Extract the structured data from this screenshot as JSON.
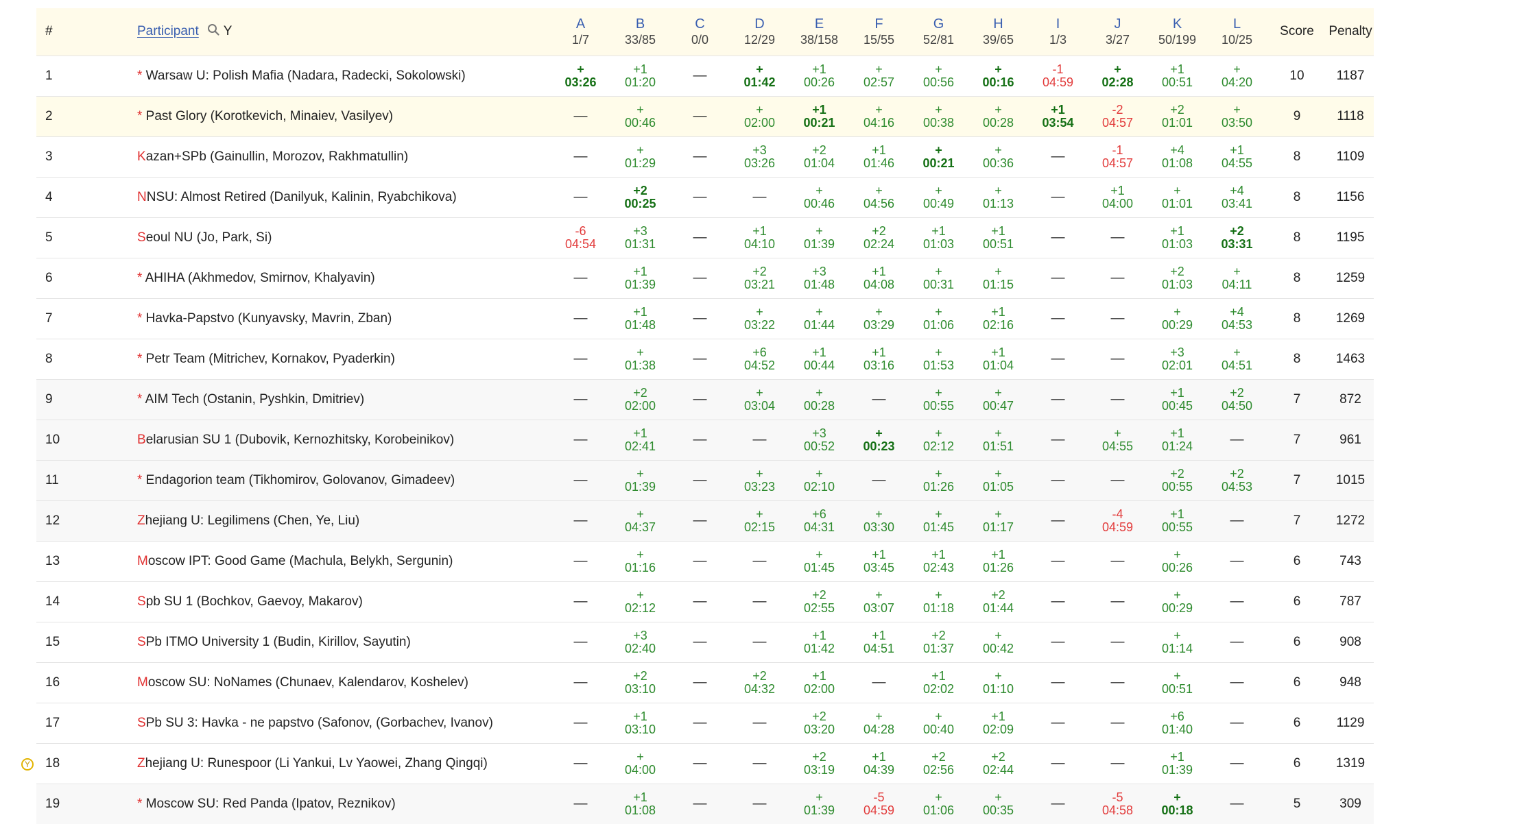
{
  "header": {
    "rank_label": "#",
    "participant_label": "Participant",
    "filter_label": "Y",
    "score_label": "Score",
    "penalty_label": "Penalty",
    "problems": [
      {
        "letter": "A",
        "stat": "1/7"
      },
      {
        "letter": "B",
        "stat": "33/85"
      },
      {
        "letter": "C",
        "stat": "0/0"
      },
      {
        "letter": "D",
        "stat": "12/29"
      },
      {
        "letter": "E",
        "stat": "38/158"
      },
      {
        "letter": "F",
        "stat": "15/55"
      },
      {
        "letter": "G",
        "stat": "52/81"
      },
      {
        "letter": "H",
        "stat": "39/65"
      },
      {
        "letter": "I",
        "stat": "1/3"
      },
      {
        "letter": "J",
        "stat": "3/27"
      },
      {
        "letter": "K",
        "stat": "50/199"
      },
      {
        "letter": "L",
        "stat": "10/25"
      }
    ]
  },
  "favorite_marker": "Y",
  "rows": [
    {
      "rank": "1",
      "mark": "*",
      "team": " Warsaw U: Polish Mafia (Nadara, Radecki, Sokolowski)",
      "score": "10",
      "penalty": "1187",
      "cells": [
        [
          "f",
          "+",
          "03:26"
        ],
        [
          "s",
          "+1",
          "01:20"
        ],
        [
          "n"
        ],
        [
          "f",
          "+",
          "01:42"
        ],
        [
          "s",
          "+1",
          "00:26"
        ],
        [
          "s",
          "+",
          "02:57"
        ],
        [
          "s",
          "+",
          "00:56"
        ],
        [
          "f",
          "+",
          "00:16"
        ],
        [
          "r",
          "-1",
          "04:59"
        ],
        [
          "f",
          "+",
          "02:28"
        ],
        [
          "s",
          "+1",
          "00:51"
        ],
        [
          "s",
          "+",
          "04:20"
        ]
      ]
    },
    {
      "rank": "2",
      "mark": "*",
      "team": " Past Glory (Korotkevich, Minaiev, Vasilyev)",
      "score": "9",
      "penalty": "1118",
      "cells": [
        [
          "n"
        ],
        [
          "s",
          "+",
          "00:46"
        ],
        [
          "n"
        ],
        [
          "s",
          "+",
          "02:00"
        ],
        [
          "f",
          "+1",
          "00:21"
        ],
        [
          "s",
          "+",
          "04:16"
        ],
        [
          "s",
          "+",
          "00:38"
        ],
        [
          "s",
          "+",
          "00:28"
        ],
        [
          "f",
          "+1",
          "03:54"
        ],
        [
          "r",
          "-2",
          "04:57"
        ],
        [
          "s",
          "+2",
          "01:01"
        ],
        [
          "s",
          "+",
          "03:50"
        ]
      ]
    },
    {
      "rank": "3",
      "mark": "K",
      "team": "azan+SPb (Gainullin, Morozov, Rakhmatullin)",
      "score": "8",
      "penalty": "1109",
      "cells": [
        [
          "n"
        ],
        [
          "s",
          "+",
          "01:29"
        ],
        [
          "n"
        ],
        [
          "s",
          "+3",
          "03:26"
        ],
        [
          "s",
          "+2",
          "01:04"
        ],
        [
          "s",
          "+1",
          "01:46"
        ],
        [
          "f",
          "+",
          "00:21"
        ],
        [
          "s",
          "+",
          "00:36"
        ],
        [
          "n"
        ],
        [
          "r",
          "-1",
          "04:57"
        ],
        [
          "s",
          "+4",
          "01:08"
        ],
        [
          "s",
          "+1",
          "04:55"
        ]
      ]
    },
    {
      "rank": "4",
      "mark": "N",
      "team": "NSU: Almost Retired (Danilyuk, Kalinin, Ryabchikova)",
      "score": "8",
      "penalty": "1156",
      "cells": [
        [
          "n"
        ],
        [
          "f",
          "+2",
          "00:25"
        ],
        [
          "n"
        ],
        [
          "n"
        ],
        [
          "s",
          "+",
          "00:46"
        ],
        [
          "s",
          "+",
          "04:56"
        ],
        [
          "s",
          "+",
          "00:49"
        ],
        [
          "s",
          "+",
          "01:13"
        ],
        [
          "n"
        ],
        [
          "s",
          "+1",
          "04:00"
        ],
        [
          "s",
          "+",
          "01:01"
        ],
        [
          "s",
          "+4",
          "03:41"
        ]
      ]
    },
    {
      "rank": "5",
      "mark": "S",
      "team": "eoul NU (Jo, Park, Si)",
      "score": "8",
      "penalty": "1195",
      "cells": [
        [
          "r",
          "-6",
          "04:54"
        ],
        [
          "s",
          "+3",
          "01:31"
        ],
        [
          "n"
        ],
        [
          "s",
          "+1",
          "04:10"
        ],
        [
          "s",
          "+",
          "01:39"
        ],
        [
          "s",
          "+2",
          "02:24"
        ],
        [
          "s",
          "+1",
          "01:03"
        ],
        [
          "s",
          "+1",
          "00:51"
        ],
        [
          "n"
        ],
        [
          "n"
        ],
        [
          "s",
          "+1",
          "01:03"
        ],
        [
          "f",
          "+2",
          "03:31"
        ]
      ]
    },
    {
      "rank": "6",
      "mark": "*",
      "team": " AHIHA (Akhmedov, Smirnov, Khalyavin)",
      "score": "8",
      "penalty": "1259",
      "cells": [
        [
          "n"
        ],
        [
          "s",
          "+1",
          "01:39"
        ],
        [
          "n"
        ],
        [
          "s",
          "+2",
          "03:21"
        ],
        [
          "s",
          "+3",
          "01:48"
        ],
        [
          "s",
          "+1",
          "04:08"
        ],
        [
          "s",
          "+",
          "00:31"
        ],
        [
          "s",
          "+",
          "01:15"
        ],
        [
          "n"
        ],
        [
          "n"
        ],
        [
          "s",
          "+2",
          "01:03"
        ],
        [
          "s",
          "+",
          "04:11"
        ]
      ]
    },
    {
      "rank": "7",
      "mark": "*",
      "team": " Havka-Papstvo (Kunyavsky, Mavrin, Zban)",
      "score": "8",
      "penalty": "1269",
      "cells": [
        [
          "n"
        ],
        [
          "s",
          "+1",
          "01:48"
        ],
        [
          "n"
        ],
        [
          "s",
          "+",
          "03:22"
        ],
        [
          "s",
          "+",
          "01:44"
        ],
        [
          "s",
          "+",
          "03:29"
        ],
        [
          "s",
          "+",
          "01:06"
        ],
        [
          "s",
          "+1",
          "02:16"
        ],
        [
          "n"
        ],
        [
          "n"
        ],
        [
          "s",
          "+",
          "00:29"
        ],
        [
          "s",
          "+4",
          "04:53"
        ]
      ]
    },
    {
      "rank": "8",
      "mark": "*",
      "team": " Petr Team (Mitrichev, Kornakov, Pyaderkin)",
      "score": "8",
      "penalty": "1463",
      "cells": [
        [
          "n"
        ],
        [
          "s",
          "+",
          "01:38"
        ],
        [
          "n"
        ],
        [
          "s",
          "+6",
          "04:52"
        ],
        [
          "s",
          "+1",
          "00:44"
        ],
        [
          "s",
          "+1",
          "03:16"
        ],
        [
          "s",
          "+",
          "01:53"
        ],
        [
          "s",
          "+1",
          "01:04"
        ],
        [
          "n"
        ],
        [
          "n"
        ],
        [
          "s",
          "+3",
          "02:01"
        ],
        [
          "s",
          "+",
          "04:51"
        ]
      ]
    },
    {
      "rank": "9",
      "mark": "*",
      "team": " AIM Tech (Ostanin, Pyshkin, Dmitriev)",
      "score": "7",
      "penalty": "872",
      "cells": [
        [
          "n"
        ],
        [
          "s",
          "+2",
          "02:00"
        ],
        [
          "n"
        ],
        [
          "s",
          "+",
          "03:04"
        ],
        [
          "s",
          "+",
          "00:28"
        ],
        [
          "n"
        ],
        [
          "s",
          "+",
          "00:55"
        ],
        [
          "s",
          "+",
          "00:47"
        ],
        [
          "n"
        ],
        [
          "n"
        ],
        [
          "s",
          "+1",
          "00:45"
        ],
        [
          "s",
          "+2",
          "04:50"
        ]
      ]
    },
    {
      "rank": "10",
      "mark": "B",
      "team": "elarusian SU 1 (Dubovik, Kernozhitsky, Korobeinikov)",
      "score": "7",
      "penalty": "961",
      "cells": [
        [
          "n"
        ],
        [
          "s",
          "+1",
          "02:41"
        ],
        [
          "n"
        ],
        [
          "n"
        ],
        [
          "s",
          "+3",
          "00:52"
        ],
        [
          "f",
          "+",
          "00:23"
        ],
        [
          "s",
          "+",
          "02:12"
        ],
        [
          "s",
          "+",
          "01:51"
        ],
        [
          "n"
        ],
        [
          "s",
          "+",
          "04:55"
        ],
        [
          "s",
          "+1",
          "01:24"
        ],
        [
          "n"
        ]
      ]
    },
    {
      "rank": "11",
      "mark": "*",
      "team": " Endagorion team (Tikhomirov, Golovanov, Gimadeev)",
      "score": "7",
      "penalty": "1015",
      "cells": [
        [
          "n"
        ],
        [
          "s",
          "+",
          "01:39"
        ],
        [
          "n"
        ],
        [
          "s",
          "+",
          "03:23"
        ],
        [
          "s",
          "+",
          "02:10"
        ],
        [
          "n"
        ],
        [
          "s",
          "+",
          "01:26"
        ],
        [
          "s",
          "+",
          "01:05"
        ],
        [
          "n"
        ],
        [
          "n"
        ],
        [
          "s",
          "+2",
          "00:55"
        ],
        [
          "s",
          "+2",
          "04:53"
        ]
      ]
    },
    {
      "rank": "12",
      "mark": "Z",
      "team": "hejiang U: Legilimens (Chen, Ye, Liu)",
      "score": "7",
      "penalty": "1272",
      "cells": [
        [
          "n"
        ],
        [
          "s",
          "+",
          "04:37"
        ],
        [
          "n"
        ],
        [
          "s",
          "+",
          "02:15"
        ],
        [
          "s",
          "+6",
          "04:31"
        ],
        [
          "s",
          "+",
          "03:30"
        ],
        [
          "s",
          "+",
          "01:45"
        ],
        [
          "s",
          "+",
          "01:17"
        ],
        [
          "n"
        ],
        [
          "r",
          "-4",
          "04:59"
        ],
        [
          "s",
          "+1",
          "00:55"
        ],
        [
          "n"
        ]
      ]
    },
    {
      "rank": "13",
      "mark": "M",
      "team": "oscow IPT: Good Game (Machula, Belykh, Sergunin)",
      "score": "6",
      "penalty": "743",
      "cells": [
        [
          "n"
        ],
        [
          "s",
          "+",
          "01:16"
        ],
        [
          "n"
        ],
        [
          "n"
        ],
        [
          "s",
          "+",
          "01:45"
        ],
        [
          "s",
          "+1",
          "03:45"
        ],
        [
          "s",
          "+1",
          "02:43"
        ],
        [
          "s",
          "+1",
          "01:26"
        ],
        [
          "n"
        ],
        [
          "n"
        ],
        [
          "s",
          "+",
          "00:26"
        ],
        [
          "n"
        ]
      ]
    },
    {
      "rank": "14",
      "mark": "S",
      "team": "pb SU 1 (Bochkov, Gaevoy, Makarov)",
      "score": "6",
      "penalty": "787",
      "cells": [
        [
          "n"
        ],
        [
          "s",
          "+",
          "02:12"
        ],
        [
          "n"
        ],
        [
          "n"
        ],
        [
          "s",
          "+2",
          "02:55"
        ],
        [
          "s",
          "+",
          "03:07"
        ],
        [
          "s",
          "+",
          "01:18"
        ],
        [
          "s",
          "+2",
          "01:44"
        ],
        [
          "n"
        ],
        [
          "n"
        ],
        [
          "s",
          "+",
          "00:29"
        ],
        [
          "n"
        ]
      ]
    },
    {
      "rank": "15",
      "mark": "S",
      "team": "Pb ITMO University 1 (Budin, Kirillov, Sayutin)",
      "score": "6",
      "penalty": "908",
      "cells": [
        [
          "n"
        ],
        [
          "s",
          "+3",
          "02:40"
        ],
        [
          "n"
        ],
        [
          "n"
        ],
        [
          "s",
          "+1",
          "01:42"
        ],
        [
          "s",
          "+1",
          "04:51"
        ],
        [
          "s",
          "+2",
          "01:37"
        ],
        [
          "s",
          "+",
          "00:42"
        ],
        [
          "n"
        ],
        [
          "n"
        ],
        [
          "s",
          "+",
          "01:14"
        ],
        [
          "n"
        ]
      ]
    },
    {
      "rank": "16",
      "mark": "M",
      "team": "oscow SU: NoNames (Chunaev, Kalendarov, Koshelev)",
      "score": "6",
      "penalty": "948",
      "cells": [
        [
          "n"
        ],
        [
          "s",
          "+2",
          "03:10"
        ],
        [
          "n"
        ],
        [
          "s",
          "+2",
          "04:32"
        ],
        [
          "s",
          "+1",
          "02:00"
        ],
        [
          "n"
        ],
        [
          "s",
          "+1",
          "02:02"
        ],
        [
          "s",
          "+",
          "01:10"
        ],
        [
          "n"
        ],
        [
          "n"
        ],
        [
          "s",
          "+",
          "00:51"
        ],
        [
          "n"
        ]
      ]
    },
    {
      "rank": "17",
      "mark": "S",
      "team": "Pb SU 3: Havka - ne papstvo (Safonov, (Gorbachev, Ivanov)",
      "score": "6",
      "penalty": "1129",
      "cells": [
        [
          "n"
        ],
        [
          "s",
          "+1",
          "03:10"
        ],
        [
          "n"
        ],
        [
          "n"
        ],
        [
          "s",
          "+2",
          "03:20"
        ],
        [
          "s",
          "+",
          "04:28"
        ],
        [
          "s",
          "+",
          "00:40"
        ],
        [
          "s",
          "+1",
          "02:09"
        ],
        [
          "n"
        ],
        [
          "n"
        ],
        [
          "s",
          "+6",
          "01:40"
        ],
        [
          "n"
        ]
      ]
    },
    {
      "rank": "18",
      "mark": "Z",
      "team": "hejiang U: Runespoor (Li Yankui, Lv Yaowei, Zhang Qingqi)",
      "score": "6",
      "penalty": "1319",
      "cells": [
        [
          "n"
        ],
        [
          "s",
          "+",
          "04:00"
        ],
        [
          "n"
        ],
        [
          "n"
        ],
        [
          "s",
          "+2",
          "03:19"
        ],
        [
          "s",
          "+1",
          "04:39"
        ],
        [
          "s",
          "+2",
          "02:56"
        ],
        [
          "s",
          "+2",
          "02:44"
        ],
        [
          "n"
        ],
        [
          "n"
        ],
        [
          "s",
          "+1",
          "01:39"
        ],
        [
          "n"
        ]
      ]
    },
    {
      "rank": "19",
      "mark": "*",
      "team": " Moscow SU: Red Panda (Ipatov, Reznikov)",
      "score": "5",
      "penalty": "309",
      "cells": [
        [
          "n"
        ],
        [
          "s",
          "+1",
          "01:08"
        ],
        [
          "n"
        ],
        [
          "n"
        ],
        [
          "s",
          "+",
          "01:39"
        ],
        [
          "r",
          "-5",
          "04:59"
        ],
        [
          "s",
          "+",
          "01:06"
        ],
        [
          "s",
          "+",
          "00:35"
        ],
        [
          "n"
        ],
        [
          "r",
          "-5",
          "04:58"
        ],
        [
          "f",
          "+",
          "00:18"
        ],
        [
          "n"
        ]
      ]
    }
  ],
  "dash": "—"
}
